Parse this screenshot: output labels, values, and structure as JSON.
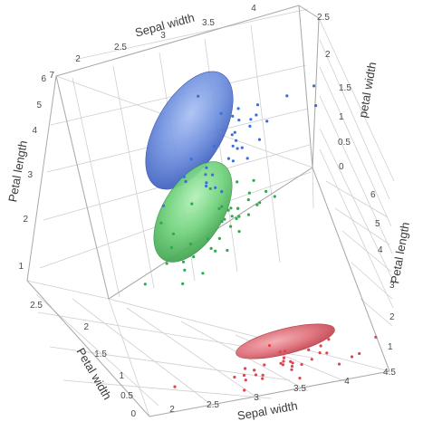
{
  "chart_data": {
    "type": "scatter",
    "title": "",
    "axes": {
      "sepal_width": {
        "label": "Sepal width",
        "ticks": [
          "2",
          "2.5",
          "3",
          "3.5",
          "4",
          "4.5"
        ],
        "range": [
          2,
          4.5
        ]
      },
      "petal_length": {
        "label": "Petal length",
        "ticks": [
          "1",
          "2",
          "3",
          "4",
          "5",
          "6",
          "7"
        ],
        "range": [
          1,
          7
        ]
      },
      "petal_width": {
        "label": "Petal width",
        "ticks": [
          "0",
          "0.5",
          "1",
          "1.5",
          "2",
          "2.5"
        ],
        "range": [
          0,
          2.5
        ]
      },
      "petal_width_2": {
        "label": "petal width",
        "ticks": [
          "0",
          "0.5",
          "1",
          "1.5",
          "2",
          "2.5"
        ]
      },
      "petal_length_2": {
        "label": "Petal length",
        "ticks": [
          "1",
          "2",
          "3",
          "4",
          "5",
          "6"
        ]
      }
    },
    "grid": true,
    "series": [
      {
        "color": "#3a6fd8",
        "ellipse_fill": "#5b7fcf",
        "points": [
          [
            3.0,
            5.8,
            2.0
          ],
          [
            2.8,
            5.6,
            2.1
          ],
          [
            3.2,
            5.9,
            2.3
          ],
          [
            2.7,
            5.1,
            1.9
          ],
          [
            3.0,
            6.1,
            2.3
          ],
          [
            2.5,
            5.0,
            1.9
          ],
          [
            3.8,
            6.7,
            2.2
          ],
          [
            2.6,
            6.9,
            2.3
          ],
          [
            3.2,
            5.7,
            2.3
          ],
          [
            2.8,
            4.9,
            2.0
          ],
          [
            3.0,
            5.5,
            2.1
          ],
          [
            2.9,
            5.6,
            1.8
          ],
          [
            3.3,
            5.7,
            2.5
          ],
          [
            2.2,
            5.0,
            1.5
          ],
          [
            3.1,
            5.4,
            2.1
          ],
          [
            3.4,
            5.6,
            2.4
          ],
          [
            2.8,
            5.1,
            1.5
          ],
          [
            3.0,
            6.6,
            2.1
          ],
          [
            3.6,
            6.1,
            2.5
          ],
          [
            2.5,
            5.8,
            1.8
          ],
          [
            3.0,
            5.2,
            2.0
          ],
          [
            2.7,
            5.3,
            1.9
          ],
          [
            3.2,
            6.0,
            1.8
          ],
          [
            2.9,
            6.3,
            1.8
          ],
          [
            3.1,
            5.1,
            2.3
          ],
          [
            2.8,
            4.8,
            1.8
          ],
          [
            3.0,
            5.9,
            2.1
          ],
          [
            2.6,
            5.6,
            1.4
          ],
          [
            3.3,
            6.0,
            2.5
          ],
          [
            2.7,
            4.9,
            1.8
          ],
          [
            3.0,
            6.4,
            2.0
          ],
          [
            2.5,
            5.0,
            2.0
          ],
          [
            3.8,
            6.4,
            2.0
          ],
          [
            2.8,
            6.7,
            2.0
          ],
          [
            3.1,
            5.5,
            1.8
          ]
        ]
      },
      {
        "color": "#2fa84f",
        "ellipse_fill": "#5cc46b",
        "points": [
          [
            3.2,
            4.7,
            1.4
          ],
          [
            3.2,
            4.5,
            1.5
          ],
          [
            3.1,
            4.9,
            1.5
          ],
          [
            2.3,
            4.0,
            1.3
          ],
          [
            2.8,
            4.6,
            1.5
          ],
          [
            2.8,
            4.5,
            1.3
          ],
          [
            3.3,
            4.7,
            1.6
          ],
          [
            2.4,
            3.3,
            1.0
          ],
          [
            2.9,
            4.6,
            1.3
          ],
          [
            2.7,
            3.9,
            1.4
          ],
          [
            2.0,
            3.5,
            1.0
          ],
          [
            3.0,
            4.2,
            1.5
          ],
          [
            2.2,
            4.0,
            1.0
          ],
          [
            2.9,
            4.7,
            1.4
          ],
          [
            2.9,
            3.6,
            1.3
          ],
          [
            3.1,
            4.4,
            1.4
          ],
          [
            3.0,
            4.5,
            1.5
          ],
          [
            2.7,
            4.1,
            1.0
          ],
          [
            2.2,
            4.5,
            1.5
          ],
          [
            2.5,
            3.9,
            1.1
          ],
          [
            3.2,
            4.8,
            1.8
          ],
          [
            2.8,
            4.0,
            1.3
          ],
          [
            2.5,
            4.9,
            1.5
          ],
          [
            2.8,
            4.7,
            1.2
          ],
          [
            2.9,
            4.3,
            1.3
          ],
          [
            3.0,
            4.4,
            1.4
          ],
          [
            2.8,
            4.8,
            1.4
          ],
          [
            3.0,
            5.0,
            1.7
          ],
          [
            2.9,
            4.5,
            1.5
          ],
          [
            2.6,
            3.5,
            1.0
          ],
          [
            2.4,
            3.8,
            1.1
          ],
          [
            2.4,
            3.7,
            1.0
          ],
          [
            2.7,
            3.9,
            1.2
          ],
          [
            2.7,
            5.1,
            1.6
          ],
          [
            3.0,
            4.5,
            1.5
          ],
          [
            3.4,
            4.5,
            1.6
          ],
          [
            3.1,
            4.7,
            1.5
          ],
          [
            2.3,
            4.4,
            1.3
          ],
          [
            3.0,
            4.1,
            1.3
          ],
          [
            2.5,
            4.0,
            1.3
          ]
        ]
      },
      {
        "color": "#e0454f",
        "ellipse_fill": "#e06a74",
        "points": [
          [
            3.5,
            1.4,
            0.2
          ],
          [
            3.0,
            1.4,
            0.2
          ],
          [
            3.2,
            1.3,
            0.2
          ],
          [
            3.1,
            1.5,
            0.2
          ],
          [
            3.6,
            1.4,
            0.2
          ],
          [
            3.9,
            1.7,
            0.4
          ],
          [
            3.4,
            1.4,
            0.3
          ],
          [
            3.4,
            1.5,
            0.2
          ],
          [
            2.9,
            1.4,
            0.2
          ],
          [
            3.1,
            1.5,
            0.1
          ],
          [
            3.7,
            1.5,
            0.2
          ],
          [
            3.4,
            1.6,
            0.2
          ],
          [
            3.0,
            1.4,
            0.1
          ],
          [
            3.0,
            1.1,
            0.1
          ],
          [
            4.0,
            1.2,
            0.2
          ],
          [
            4.4,
            1.5,
            0.4
          ],
          [
            3.9,
            1.3,
            0.4
          ],
          [
            3.5,
            1.4,
            0.3
          ],
          [
            3.8,
            1.7,
            0.3
          ],
          [
            3.8,
            1.5,
            0.3
          ],
          [
            3.4,
            1.7,
            0.2
          ],
          [
            3.7,
            1.5,
            0.4
          ],
          [
            3.6,
            1.0,
            0.2
          ],
          [
            3.3,
            1.7,
            0.5
          ],
          [
            3.4,
            1.9,
            0.2
          ],
          [
            3.0,
            1.6,
            0.2
          ],
          [
            3.4,
            1.6,
            0.4
          ],
          [
            3.5,
            1.5,
            0.2
          ],
          [
            3.2,
            1.6,
            0.2
          ],
          [
            2.3,
            1.3,
            0.3
          ],
          [
            4.2,
            1.4,
            0.2
          ],
          [
            4.1,
            1.5,
            0.1
          ],
          [
            3.1,
            1.5,
            0.2
          ],
          [
            3.2,
            1.2,
            0.2
          ],
          [
            3.5,
            1.3,
            0.2
          ]
        ]
      }
    ]
  }
}
